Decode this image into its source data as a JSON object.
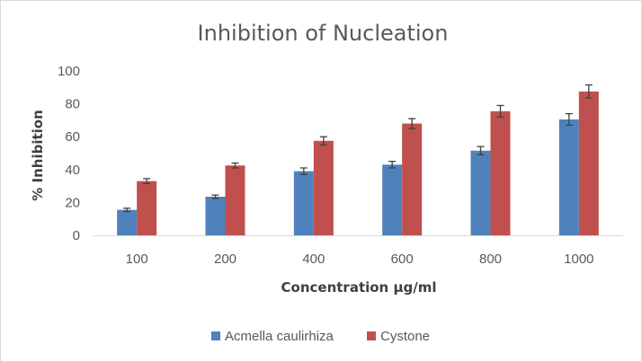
{
  "chart_data": {
    "type": "bar",
    "title": "Inhibition of Nucleation",
    "xlabel": "Concentration µg/ml",
    "ylabel": "% Inhibition",
    "categories": [
      "100",
      "200",
      "400",
      "600",
      "800",
      "1000"
    ],
    "ylim": [
      0,
      100
    ],
    "yticks": [
      0,
      20,
      40,
      60,
      80,
      100
    ],
    "grid": false,
    "legend_position": "bottom",
    "series": [
      {
        "name": "Acmella caulirhiza",
        "color": "#4f81bd",
        "values": [
          15.5,
          23.5,
          39,
          43,
          51.5,
          70.5
        ],
        "errors": [
          1,
          1,
          2,
          2,
          2.5,
          3.5
        ]
      },
      {
        "name": "Cystone",
        "color": "#c0504d",
        "values": [
          33,
          42.5,
          57.5,
          68,
          75.5,
          87.5
        ],
        "errors": [
          1.5,
          1.5,
          2.5,
          3,
          3.5,
          4
        ]
      }
    ]
  }
}
